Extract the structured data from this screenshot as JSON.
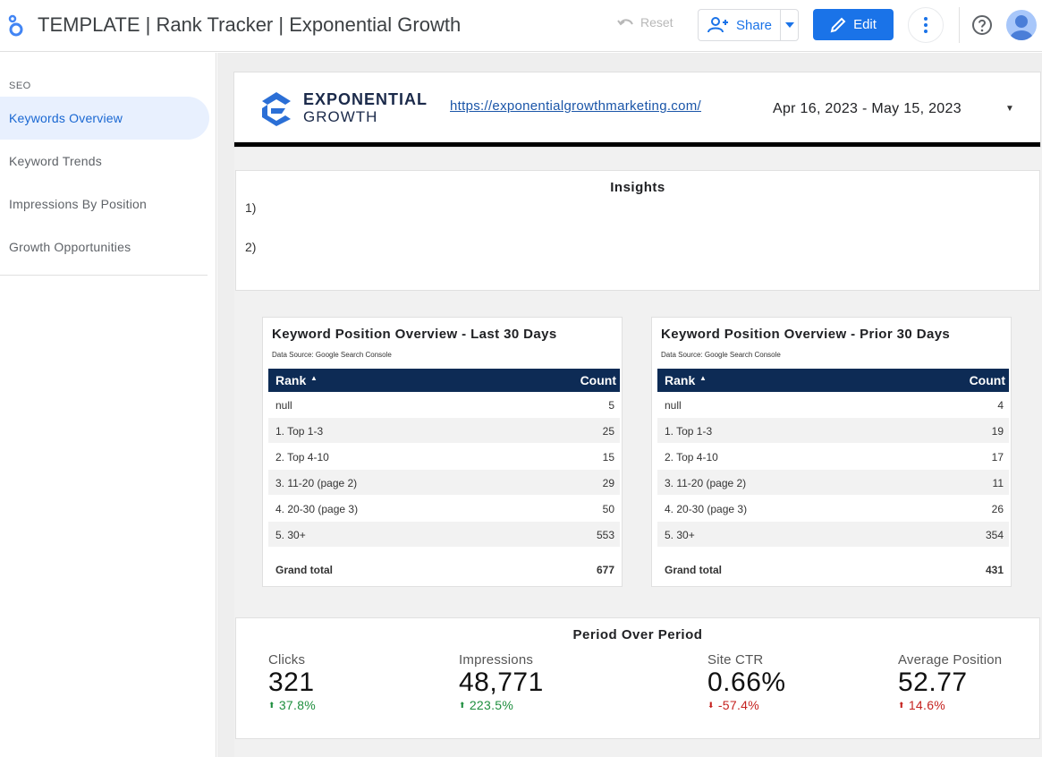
{
  "topbar": {
    "title": "TEMPLATE | Rank Tracker | Exponential Growth",
    "reset_label": "Reset",
    "share_label": "Share",
    "edit_label": "Edit"
  },
  "sidebar": {
    "section": "SEO",
    "items": [
      {
        "label": "Keywords Overview",
        "active": true
      },
      {
        "label": "Keyword Trends",
        "active": false
      },
      {
        "label": "Impressions By Position",
        "active": false
      },
      {
        "label": "Growth Opportunities",
        "active": false
      }
    ]
  },
  "header": {
    "brand_line1": "EXPONENTIAL",
    "brand_line2": "GROWTH",
    "site_url": "https://exponentialgrowthmarketing.com/",
    "date_range": "Apr 16, 2023 - May 15, 2023"
  },
  "insights": {
    "title": "Insights",
    "lines": [
      "1)",
      "2)"
    ]
  },
  "tables": [
    {
      "title": "Keyword Position Overview - Last 30 Days",
      "source": "Data Source: Google Search Console",
      "col_rank": "Rank",
      "col_count": "Count",
      "rows": [
        {
          "rank": "null",
          "count": "5"
        },
        {
          "rank": "1. Top 1-3",
          "count": "25"
        },
        {
          "rank": "2. Top 4-10",
          "count": "15"
        },
        {
          "rank": "3. 11-20 (page 2)",
          "count": "29"
        },
        {
          "rank": "4. 20-30 (page 3)",
          "count": "50"
        },
        {
          "rank": "5. 30+",
          "count": "553"
        }
      ],
      "total_label": "Grand total",
      "total": "677"
    },
    {
      "title": "Keyword Position Overview - Prior 30 Days",
      "source": "Data Source: Google Search Console",
      "col_rank": "Rank",
      "col_count": "Count",
      "rows": [
        {
          "rank": "null",
          "count": "4"
        },
        {
          "rank": "1. Top 1-3",
          "count": "19"
        },
        {
          "rank": "2. Top 4-10",
          "count": "17"
        },
        {
          "rank": "3. 11-20 (page 2)",
          "count": "11"
        },
        {
          "rank": "4. 20-30 (page 3)",
          "count": "26"
        },
        {
          "rank": "5. 30+",
          "count": "354"
        }
      ],
      "total_label": "Grand total",
      "total": "431"
    }
  ],
  "period": {
    "title": "Period Over Period",
    "metrics": [
      {
        "label": "Clicks",
        "value": "321",
        "delta": "37.8%",
        "direction": "up",
        "color": "#1e8e3e"
      },
      {
        "label": "Impressions",
        "value": "48,771",
        "delta": "223.5%",
        "direction": "up",
        "color": "#1e8e3e"
      },
      {
        "label": "Site CTR",
        "value": "0.66%",
        "delta": "-57.4%",
        "direction": "down",
        "color": "#c5221f"
      },
      {
        "label": "Average Position",
        "value": "52.77",
        "delta": "14.6%",
        "direction": "up",
        "color": "#c5221f"
      }
    ]
  },
  "colors": {
    "accent": "#1a73e8",
    "table_header": "#0d2b55",
    "active_nav_bg": "#e8f0fe"
  }
}
